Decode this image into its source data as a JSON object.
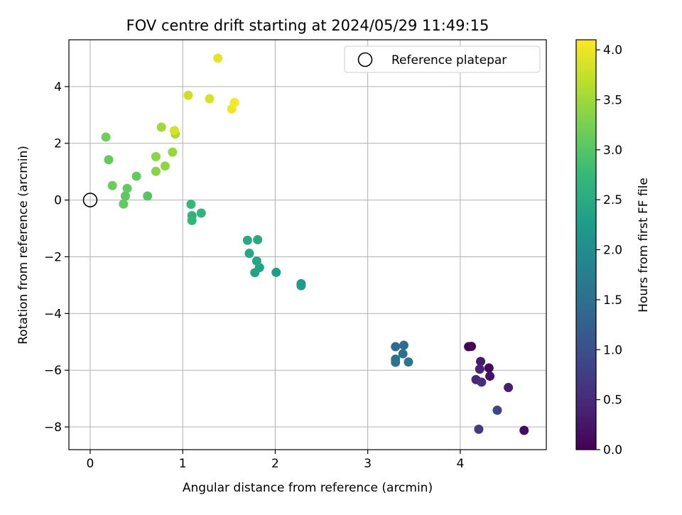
{
  "chart_data": {
    "type": "scatter",
    "title": "FOV centre drift starting at 2024/05/29 11:49:15",
    "xlabel": "Angular distance from reference (arcmin)",
    "ylabel": "Rotation from reference (arcmin)",
    "xlim": [
      -0.23,
      4.93
    ],
    "ylim": [
      -8.8,
      5.65
    ],
    "xticks": [
      0,
      1,
      2,
      3,
      4
    ],
    "yticks": [
      -8,
      -6,
      -4,
      -2,
      0,
      2,
      4
    ],
    "xtick_labels": [
      "0",
      "1",
      "2",
      "3",
      "4"
    ],
    "ytick_labels": [
      "−8",
      "−6",
      "−4",
      "−2",
      "0",
      "2",
      "4"
    ],
    "grid": true,
    "legend": {
      "placement": "top-right",
      "entries": [
        "Reference platepar"
      ]
    },
    "reference_point": {
      "x": 0,
      "y": 0
    },
    "colorbar": {
      "label": "Hours from first FF file",
      "range": [
        0.0,
        4.1
      ],
      "ticks": [
        0.0,
        0.5,
        1.0,
        1.5,
        2.0,
        2.5,
        3.0,
        3.5,
        4.0
      ],
      "tick_labels": [
        "0.0",
        "0.5",
        "1.0",
        "1.5",
        "2.0",
        "2.5",
        "3.0",
        "3.5",
        "4.0"
      ],
      "colormap": "viridis",
      "colormap_stops": [
        "#440154",
        "#482878",
        "#3e4989",
        "#31688e",
        "#26828e",
        "#1f9e89",
        "#35b779",
        "#6ece58",
        "#b5de2b",
        "#fde725"
      ]
    },
    "points": [
      {
        "x": 4.09,
        "y": -5.17,
        "c": 0.02
      },
      {
        "x": 4.12,
        "y": -5.16,
        "c": 0.05
      },
      {
        "x": 4.31,
        "y": -5.92,
        "c": 0.1
      },
      {
        "x": 4.69,
        "y": -8.12,
        "c": 0.14
      },
      {
        "x": 4.32,
        "y": -6.21,
        "c": 0.2
      },
      {
        "x": 4.22,
        "y": -5.69,
        "c": 0.3
      },
      {
        "x": 4.52,
        "y": -6.61,
        "c": 0.35
      },
      {
        "x": 4.21,
        "y": -5.96,
        "c": 0.4
      },
      {
        "x": 4.17,
        "y": -6.33,
        "c": 0.45
      },
      {
        "x": 4.23,
        "y": -6.42,
        "c": 0.55
      },
      {
        "x": 4.2,
        "y": -8.08,
        "c": 0.7
      },
      {
        "x": 4.4,
        "y": -7.41,
        "c": 0.85
      },
      {
        "x": 3.3,
        "y": -5.17,
        "c": 1.4
      },
      {
        "x": 3.39,
        "y": -5.12,
        "c": 1.45
      },
      {
        "x": 3.38,
        "y": -5.42,
        "c": 1.5
      },
      {
        "x": 3.3,
        "y": -5.61,
        "c": 1.55
      },
      {
        "x": 3.3,
        "y": -5.72,
        "c": 1.58
      },
      {
        "x": 3.44,
        "y": -5.71,
        "c": 1.6
      },
      {
        "x": 2.28,
        "y": -2.95,
        "c": 2.2
      },
      {
        "x": 2.28,
        "y": -3.02,
        "c": 2.22
      },
      {
        "x": 2.01,
        "y": -2.55,
        "c": 2.28
      },
      {
        "x": 1.83,
        "y": -2.38,
        "c": 2.35
      },
      {
        "x": 1.78,
        "y": -2.56,
        "c": 2.38
      },
      {
        "x": 1.8,
        "y": -2.15,
        "c": 2.42
      },
      {
        "x": 1.72,
        "y": -1.88,
        "c": 2.45
      },
      {
        "x": 1.7,
        "y": -1.42,
        "c": 2.48
      },
      {
        "x": 1.81,
        "y": -1.4,
        "c": 2.5
      },
      {
        "x": 1.1,
        "y": -0.55,
        "c": 2.65
      },
      {
        "x": 1.2,
        "y": -0.46,
        "c": 2.68
      },
      {
        "x": 1.1,
        "y": -0.72,
        "c": 2.7
      },
      {
        "x": 1.09,
        "y": -0.15,
        "c": 2.72
      },
      {
        "x": 0.62,
        "y": 0.14,
        "c": 3.0
      },
      {
        "x": 0.38,
        "y": 0.14,
        "c": 3.05
      },
      {
        "x": 0.36,
        "y": -0.14,
        "c": 3.08
      },
      {
        "x": 0.4,
        "y": 0.41,
        "c": 3.1
      },
      {
        "x": 0.5,
        "y": 0.84,
        "c": 3.1
      },
      {
        "x": 0.2,
        "y": 1.42,
        "c": 3.1
      },
      {
        "x": 0.24,
        "y": 0.51,
        "c": 3.15
      },
      {
        "x": 0.17,
        "y": 2.22,
        "c": 3.18
      },
      {
        "x": 0.71,
        "y": 1.01,
        "c": 3.35
      },
      {
        "x": 0.71,
        "y": 1.53,
        "c": 3.38
      },
      {
        "x": 0.81,
        "y": 1.2,
        "c": 3.4
      },
      {
        "x": 0.89,
        "y": 1.69,
        "c": 3.45
      },
      {
        "x": 0.77,
        "y": 2.57,
        "c": 3.5
      },
      {
        "x": 0.92,
        "y": 2.33,
        "c": 3.55
      },
      {
        "x": 0.91,
        "y": 2.45,
        "c": 3.85
      },
      {
        "x": 1.06,
        "y": 3.69,
        "c": 3.8
      },
      {
        "x": 1.29,
        "y": 3.57,
        "c": 3.85
      },
      {
        "x": 1.38,
        "y": 5.0,
        "c": 3.95
      },
      {
        "x": 1.53,
        "y": 3.21,
        "c": 4.0
      },
      {
        "x": 1.56,
        "y": 3.44,
        "c": 4.05
      }
    ]
  }
}
